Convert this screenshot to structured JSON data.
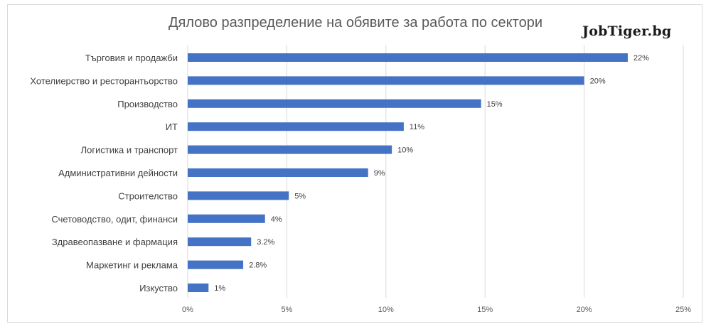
{
  "brand": {
    "logo_text": "JobTiger.bg"
  },
  "colors": {
    "bar": "#4472c4",
    "grid": "#d9d9d9",
    "text": "#404040"
  },
  "chart_data": {
    "type": "bar",
    "orientation": "horizontal",
    "title": "Дялово разпределение на обявите за работа по сектори",
    "xlabel": "",
    "ylabel": "",
    "xlim": [
      0,
      25
    ],
    "x_ticks": [
      0,
      5,
      10,
      15,
      20,
      25
    ],
    "x_tick_labels": [
      "0%",
      "5%",
      "10%",
      "15%",
      "20%",
      "25%"
    ],
    "grid": true,
    "legend": "none",
    "categories": [
      "Търговия и продажби",
      "Хотелиерство и ресторантьорство",
      "Производство",
      "ИТ",
      "Логистика и транспорт",
      "Административни дейности",
      "Строителство",
      "Счетоводство, одит, финанси",
      "Здравеопазване и фармация",
      "Маркетинг и реклама",
      "Изкуство"
    ],
    "values": [
      22.2,
      20.0,
      14.8,
      10.9,
      10.3,
      9.1,
      5.1,
      3.9,
      3.2,
      2.8,
      1.05
    ],
    "value_labels": [
      "22%",
      "20%",
      "15%",
      "11%",
      "10%",
      "9%",
      "5%",
      "4%",
      "3.2%",
      "2.8%",
      "1%"
    ]
  }
}
